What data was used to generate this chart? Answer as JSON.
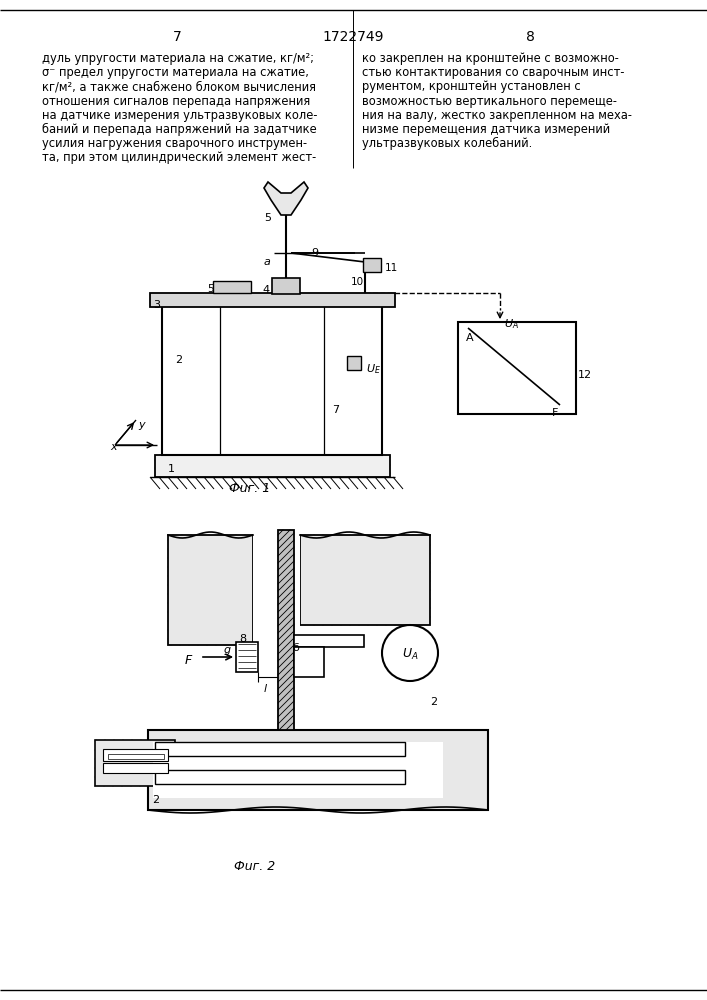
{
  "page_num_left": "7",
  "page_num_center": "1722749",
  "page_num_right": "8",
  "left_col": [
    "дуль упругости материала на сжатие, кг/м²;",
    "σ⁻ предел упругости материала на сжатие,",
    "кг/м², а также снабжено блоком вычисления",
    "отношения сигналов перепада напряжения",
    "на датчике измерения ультразвуковых коле-",
    "баний и перепада напряжений на задатчике",
    "усилия нагружения сварочного инструмен-",
    "та, при этом цилиндрический элемент жест-"
  ],
  "right_col": [
    "ко закреплен на кронштейне с возможно-",
    "стью контактирования со сварочным инст-",
    "рументом, кронштейн установлен с",
    "возможностью вертикального перемеще-",
    "ния на валу, жестко закрепленном на меха-",
    "низме перемещения датчика измерений",
    "ультразвуковых колебаний."
  ],
  "fig1_cap": "Фuг. 1",
  "fig2_cap": "Фuг. 2",
  "bg": "#ffffff",
  "lc": "#000000"
}
